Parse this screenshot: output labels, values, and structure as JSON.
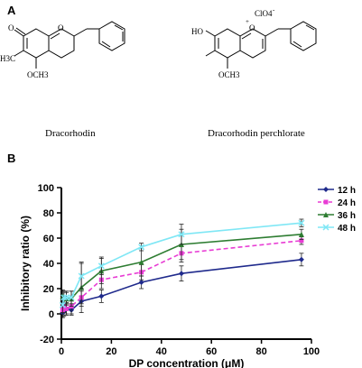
{
  "panel_a": {
    "label": "A",
    "molecules": [
      {
        "name": "Dracorhodin",
        "atoms": {
          "carbonyl_o": "O",
          "ring_o": "O",
          "methyl": "H3C",
          "methoxy": "OCH3"
        }
      },
      {
        "name": "Dracorhodin perchlorate",
        "atoms": {
          "hydroxyl": "HO",
          "ring_o": "O",
          "counter_ion": "ClO4",
          "counter_ion_charge": "-",
          "cation_charge": "+",
          "methoxy": "OCH3"
        }
      }
    ]
  },
  "panel_b": {
    "label": "B"
  },
  "colors": {
    "12h": "#1f2a8c",
    "24h": "#e83cd4",
    "36h": "#2e7d32",
    "48h": "#7fe7f5",
    "errorbar": "#222222"
  },
  "chart_data": {
    "type": "line",
    "xlabel": "DP concentration (μM)",
    "ylabel": "Inhibitory ratio (%)",
    "xlim": [
      0,
      100
    ],
    "ylim": [
      -20,
      100
    ],
    "xticks": [
      0,
      20,
      40,
      60,
      80,
      100
    ],
    "yticks": [
      -20,
      0,
      20,
      40,
      60,
      80,
      100
    ],
    "grid": false,
    "legend_position": "right",
    "x": [
      0.5,
      1,
      2,
      4,
      8,
      16,
      32,
      48,
      96
    ],
    "series": [
      {
        "name": "12 h",
        "key": "12h",
        "dash": "solid",
        "marker": "diamond",
        "values": [
          1,
          2,
          4,
          3,
          10,
          14,
          25,
          32,
          43
        ],
        "errors": [
          4,
          4,
          4,
          4,
          4,
          5,
          5,
          6,
          5
        ]
      },
      {
        "name": "24 h",
        "key": "24h",
        "dash": "dashed",
        "marker": "square",
        "values": [
          3,
          6,
          4,
          6,
          13,
          27,
          33,
          48,
          58
        ],
        "errors": [
          5,
          5,
          5,
          6,
          5,
          7,
          6,
          7,
          3
        ]
      },
      {
        "name": "36 h",
        "key": "36h",
        "dash": "solid",
        "marker": "triangle",
        "values": [
          14,
          13,
          12,
          12,
          21,
          34,
          41,
          55,
          63
        ],
        "errors": [
          5,
          5,
          5,
          6,
          20,
          10,
          11,
          12,
          4
        ]
      },
      {
        "name": "48 h",
        "key": "48h",
        "dash": "solid",
        "marker": "cross",
        "values": [
          7,
          13,
          13,
          13,
          30,
          38,
          53,
          63,
          72
        ],
        "errors": [
          6,
          5,
          5,
          5,
          10,
          7,
          3,
          8,
          3
        ]
      }
    ]
  }
}
